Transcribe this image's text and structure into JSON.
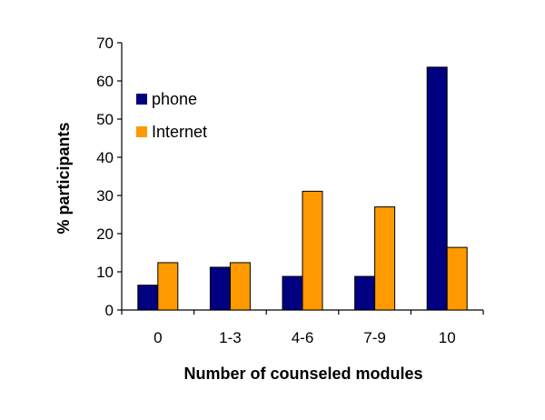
{
  "chart_data": {
    "type": "bar",
    "categories": [
      "0",
      "1-3",
      "4-6",
      "7-9",
      "10"
    ],
    "series": [
      {
        "name": "phone",
        "values": [
          6.5,
          11.2,
          8.8,
          8.8,
          63.6
        ],
        "color": "#000080"
      },
      {
        "name": "Internet",
        "values": [
          12.4,
          12.4,
          31.1,
          27.0,
          16.4
        ],
        "color": "#ff9900"
      }
    ],
    "xlabel": "Number of counseled modules",
    "ylabel": "% participants",
    "ylim": [
      0,
      70
    ],
    "yticks": [
      0,
      10,
      20,
      30,
      40,
      50,
      60,
      70
    ],
    "grid": false,
    "legend_position": "top-left"
  }
}
